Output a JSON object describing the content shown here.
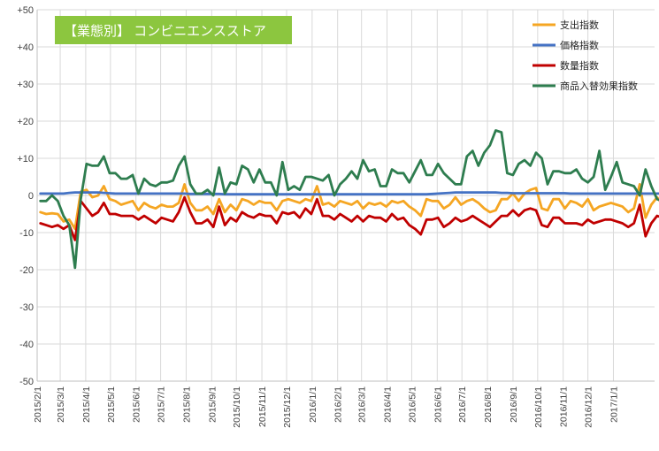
{
  "chart_data": {
    "type": "line",
    "title": "【業態別】 コンビニエンスストア",
    "title_bg": "#8cc63f",
    "ylim": [
      -50,
      50
    ],
    "y_ticks": [
      "-50",
      "-40",
      "-30",
      "-20",
      "-10",
      "0",
      "+10",
      "+20",
      "+30",
      "+40",
      "+50"
    ],
    "x_tick_labels": [
      "2015/2/1",
      "2015/3/1",
      "2015/4/1",
      "2015/5/1",
      "2015/6/1",
      "2015/7/1",
      "2015/8/1",
      "2015/9/1",
      "2015/10/1",
      "2015/11/1",
      "2015/12/1",
      "2016/1/1",
      "2016/2/1",
      "2016/3/1",
      "2016/4/1",
      "2016/5/1",
      "2016/6/1",
      "2016/7/1",
      "2016/8/1",
      "2016/9/1",
      "2016/10/1",
      "2016/11/1",
      "2016/12/1",
      "2017/1/1"
    ],
    "x_start": "2015/2/1",
    "x_end": "2017/2/20",
    "x_step_days": 7,
    "grid": true,
    "legend_position": "top-right",
    "series": [
      {
        "name": "支出指数",
        "color": "#f5a623",
        "values": [
          -4.5,
          -5.0,
          -4.8,
          -5.0,
          -7.0,
          -6.5,
          -9.0,
          1.0,
          1.5,
          -0.5,
          0.0,
          2.5,
          -1.0,
          -1.5,
          -2.5,
          -2.0,
          -1.5,
          -4.0,
          -2.0,
          -3.0,
          -3.5,
          -2.5,
          -3.0,
          -3.0,
          -2.0,
          3.0,
          -2.0,
          -4.0,
          -4.0,
          -3.0,
          -5.0,
          -1.0,
          -4.5,
          -2.5,
          -4.0,
          -1.0,
          -1.5,
          -2.5,
          -1.5,
          -2.0,
          -2.0,
          -4.0,
          -1.5,
          -1.0,
          -1.5,
          -2.0,
          -1.0,
          -1.5,
          2.5,
          -2.5,
          -2.0,
          -3.0,
          -1.5,
          -2.0,
          -2.5,
          -1.5,
          -3.5,
          -2.0,
          -2.5,
          -2.0,
          -3.0,
          -1.5,
          -2.0,
          -1.5,
          -3.0,
          -4.0,
          -5.5,
          -1.0,
          -1.5,
          -1.5,
          -3.5,
          -2.5,
          -0.5,
          -2.5,
          -1.5,
          -1.0,
          -2.0,
          -3.5,
          -4.5,
          -4.0,
          -1.0,
          -1.0,
          0.5,
          -1.5,
          0.5,
          1.5,
          2.0,
          -3.5,
          -4.0,
          -1.0,
          -1.0,
          -3.5,
          -1.5,
          -2.0,
          -3.0,
          -1.0,
          -4.0,
          -3.0,
          -2.5,
          -2.0,
          -2.5,
          -3.0,
          -4.5,
          -3.5,
          3.0,
          -6.0,
          -2.5,
          -0.5,
          -2.5,
          -2.5
        ]
      },
      {
        "name": "価格指数",
        "color": "#4472c4",
        "values": [
          0.5,
          0.5,
          0.5,
          0.5,
          0.5,
          0.7,
          0.8,
          0.8,
          0.8,
          0.8,
          0.8,
          0.7,
          0.6,
          0.5,
          0.5,
          0.5,
          0.5,
          0.5,
          0.5,
          0.5,
          0.5,
          0.5,
          0.5,
          0.5,
          0.5,
          0.5,
          0.4,
          0.4,
          0.4,
          0.4,
          0.4,
          0.4,
          0.3,
          0.3,
          0.3,
          0.3,
          0.3,
          0.3,
          0.3,
          0.3,
          0.3,
          0.3,
          0.3,
          0.3,
          0.3,
          0.3,
          0.3,
          0.3,
          0.3,
          0.3,
          0.3,
          0.3,
          0.3,
          0.3,
          0.3,
          0.3,
          0.3,
          0.3,
          0.3,
          0.3,
          0.3,
          0.3,
          0.3,
          0.3,
          0.3,
          0.3,
          0.3,
          0.3,
          0.4,
          0.5,
          0.6,
          0.7,
          0.8,
          0.8,
          0.8,
          0.8,
          0.8,
          0.8,
          0.8,
          0.8,
          0.7,
          0.7,
          0.6,
          0.6,
          0.6,
          0.6,
          0.6,
          0.6,
          0.6,
          0.6,
          0.6,
          0.6,
          0.5,
          0.5,
          0.5,
          0.5,
          0.5,
          0.5,
          0.5,
          0.5,
          0.5,
          0.5,
          0.5,
          0.5,
          0.5,
          0.5,
          0.5,
          0.5,
          0.5,
          0.5,
          0.5
        ]
      },
      {
        "name": "数量指数",
        "color": "#c00000",
        "values": [
          -7.5,
          -8.0,
          -8.5,
          -8.0,
          -9.0,
          -8.0,
          -12.0,
          -1.5,
          -3.5,
          -5.5,
          -4.5,
          -2.0,
          -5.0,
          -5.0,
          -5.5,
          -5.5,
          -5.5,
          -6.5,
          -5.5,
          -6.5,
          -7.5,
          -6.0,
          -6.5,
          -7.0,
          -4.5,
          -0.5,
          -4.5,
          -7.5,
          -7.5,
          -6.5,
          -8.5,
          -3.0,
          -8.0,
          -6.0,
          -7.0,
          -4.5,
          -5.5,
          -6.0,
          -5.0,
          -5.5,
          -5.5,
          -7.5,
          -4.5,
          -5.0,
          -4.5,
          -6.0,
          -3.5,
          -5.0,
          -1.0,
          -5.5,
          -5.5,
          -6.5,
          -5.0,
          -6.0,
          -7.0,
          -5.5,
          -7.0,
          -5.5,
          -6.0,
          -6.0,
          -7.0,
          -5.0,
          -6.5,
          -6.0,
          -8.0,
          -9.0,
          -10.5,
          -6.5,
          -6.5,
          -6.0,
          -8.5,
          -7.5,
          -6.0,
          -7.0,
          -6.5,
          -5.5,
          -6.5,
          -7.5,
          -8.5,
          -7.0,
          -5.5,
          -5.5,
          -4.0,
          -5.5,
          -4.0,
          -3.5,
          -4.0,
          -8.0,
          -8.5,
          -6.0,
          -6.0,
          -7.5,
          -7.5,
          -7.5,
          -8.0,
          -6.5,
          -7.5,
          -7.0,
          -6.5,
          -6.5,
          -7.0,
          -7.5,
          -8.5,
          -7.5,
          -2.5,
          -11.0,
          -7.5,
          -5.5,
          -6.0,
          -6.5
        ]
      },
      {
        "name": "商品入替効果指数",
        "color": "#2e7d4f",
        "values": [
          -1.5,
          -1.5,
          0.0,
          -1.5,
          -5.5,
          -8.0,
          -19.5,
          -1.0,
          8.5,
          8.0,
          8.0,
          10.5,
          6.0,
          6.0,
          4.5,
          4.5,
          5.5,
          0.5,
          4.5,
          3.0,
          2.5,
          3.5,
          3.5,
          4.0,
          8.0,
          10.5,
          3.0,
          0.5,
          0.5,
          1.5,
          0.0,
          7.5,
          0.5,
          3.5,
          3.0,
          8.0,
          7.0,
          3.5,
          7.0,
          3.5,
          3.5,
          0.0,
          9.0,
          1.5,
          2.5,
          1.5,
          5.0,
          5.0,
          4.5,
          4.0,
          5.5,
          0.0,
          3.0,
          4.5,
          6.5,
          4.5,
          9.5,
          6.5,
          7.0,
          2.5,
          2.5,
          7.0,
          6.0,
          6.0,
          3.5,
          6.5,
          9.5,
          5.5,
          5.5,
          8.5,
          6.0,
          4.5,
          3.0,
          3.0,
          10.5,
          12.0,
          8.0,
          11.5,
          13.5,
          17.5,
          17.0,
          6.0,
          5.5,
          8.5,
          9.5,
          8.0,
          11.5,
          10.0,
          3.0,
          6.5,
          6.5,
          6.0,
          6.0,
          7.0,
          4.5,
          3.5,
          5.0,
          12.0,
          1.5,
          5.0,
          9.0,
          3.5,
          3.0,
          2.5,
          0.0,
          7.0,
          2.5,
          -1.0,
          -1.5,
          0.0
        ]
      }
    ]
  }
}
